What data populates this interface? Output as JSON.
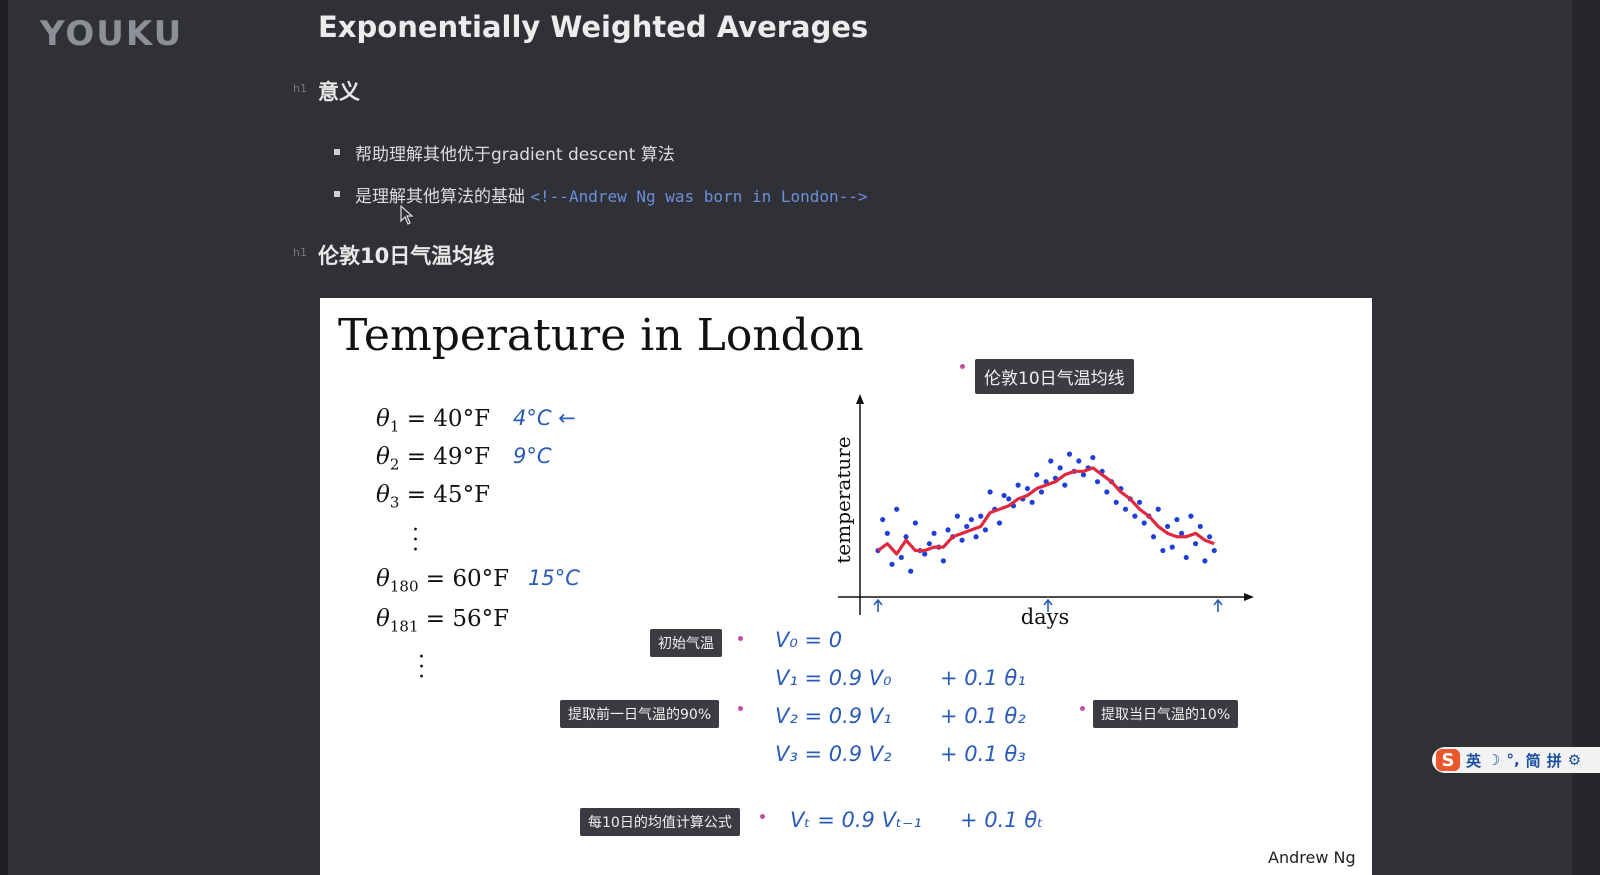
{
  "logo": "YOUKU",
  "doc": {
    "title": "Exponentially Weighted Averages",
    "sections": [
      {
        "heading": "意义",
        "items": [
          {
            "text": "帮助理解其他优于gradient descent 算法",
            "comment": ""
          },
          {
            "text": "是理解其他算法的基础 ",
            "comment": "<!--Andrew Ng was born in London-->"
          }
        ]
      },
      {
        "heading": "伦敦10日气温均线"
      }
    ]
  },
  "slide": {
    "title": "Temperature in London",
    "equations": [
      {
        "sym": "θ",
        "sub": "1",
        "val": " = 40°F",
        "note": "4°C ←"
      },
      {
        "sym": "θ",
        "sub": "2",
        "val": " = 49°F",
        "note": "9°C"
      },
      {
        "sym": "θ",
        "sub": "3",
        "val": " = 45°F",
        "note": ""
      },
      {
        "sym": "θ",
        "sub": "180",
        "val": " = 60°F",
        "note": "15°C"
      },
      {
        "sym": "θ",
        "sub": "181",
        "val": " = 56°F",
        "note": ""
      }
    ],
    "formulas": [
      {
        "lhs": "V₀ = 0",
        "rhs": ""
      },
      {
        "lhs": "V₁ = 0.9 V₀",
        "rhs": "+ 0.1 θ₁"
      },
      {
        "lhs": "V₂ = 0.9 V₁",
        "rhs": "+ 0.1 θ₂"
      },
      {
        "lhs": "V₃ = 0.9 V₂",
        "rhs": "+ 0.1 θ₃"
      },
      {
        "lhs": "Vₜ = 0.9 Vₜ₋₁",
        "rhs": "+ 0.1 θₜ"
      }
    ],
    "tags": {
      "chart_tag": "伦敦10日气温均线",
      "initial": "初始气温",
      "prev90": "提取前一日气温的90%",
      "cur10": "提取当日气温的10%",
      "formula": "每10日的均值计算公式"
    },
    "credit": "Andrew Ng"
  },
  "chart_data": {
    "type": "scatter",
    "xlabel": "days",
    "ylabel": "temperature",
    "ylim": [
      30,
      75
    ],
    "xlim": [
      1,
      365
    ],
    "grid": false,
    "legend": "none",
    "series": [
      {
        "type": "scatter",
        "color": "#1f3fd6",
        "x": [
          1,
          6,
          11,
          16,
          21,
          26,
          31,
          36,
          41,
          46,
          51,
          56,
          61,
          66,
          71,
          76,
          81,
          86,
          91,
          96,
          101,
          106,
          111,
          116,
          121,
          126,
          131,
          136,
          141,
          146,
          151,
          156,
          161,
          166,
          171,
          176,
          181,
          186,
          191,
          196,
          201,
          206,
          211,
          216,
          221,
          226,
          231,
          236,
          241,
          246,
          251,
          256,
          261,
          266,
          271,
          276,
          281,
          286,
          291,
          296,
          301,
          306,
          311,
          316,
          321,
          326,
          331,
          336,
          341,
          346,
          351,
          356,
          361
        ],
        "y": [
          40,
          49,
          45,
          36,
          52,
          38,
          44,
          34,
          48,
          40,
          39,
          42,
          45,
          41,
          37,
          46,
          44,
          50,
          43,
          47,
          49,
          44,
          50,
          46,
          57,
          52,
          48,
          56,
          55,
          53,
          59,
          55,
          58,
          54,
          62,
          57,
          60,
          66,
          61,
          64,
          59,
          68,
          63,
          66,
          62,
          64,
          67,
          60,
          63,
          57,
          60,
          54,
          58,
          52,
          55,
          50,
          54,
          48,
          50,
          44,
          52,
          40,
          47,
          41,
          49,
          45,
          38,
          50,
          42,
          47,
          37,
          44,
          40
        ]
      },
      {
        "type": "line",
        "color": "#e0283f",
        "x": [
          1,
          11,
          21,
          31,
          41,
          51,
          61,
          71,
          81,
          91,
          101,
          111,
          121,
          131,
          141,
          151,
          161,
          171,
          181,
          191,
          201,
          211,
          221,
          231,
          241,
          251,
          261,
          271,
          281,
          291,
          301,
          311,
          321,
          331,
          341,
          351,
          361
        ],
        "y": [
          40,
          42,
          39,
          43,
          40,
          40,
          41,
          41,
          44,
          45,
          46,
          47,
          51,
          52,
          53,
          55,
          56,
          58,
          59,
          60,
          62,
          63,
          63,
          64,
          62,
          60,
          57,
          55,
          52,
          50,
          47,
          45,
          44,
          44,
          45,
          43,
          42
        ]
      }
    ]
  },
  "ime": {
    "lang": "英",
    "simp": "简",
    "pinyin": "拼"
  }
}
